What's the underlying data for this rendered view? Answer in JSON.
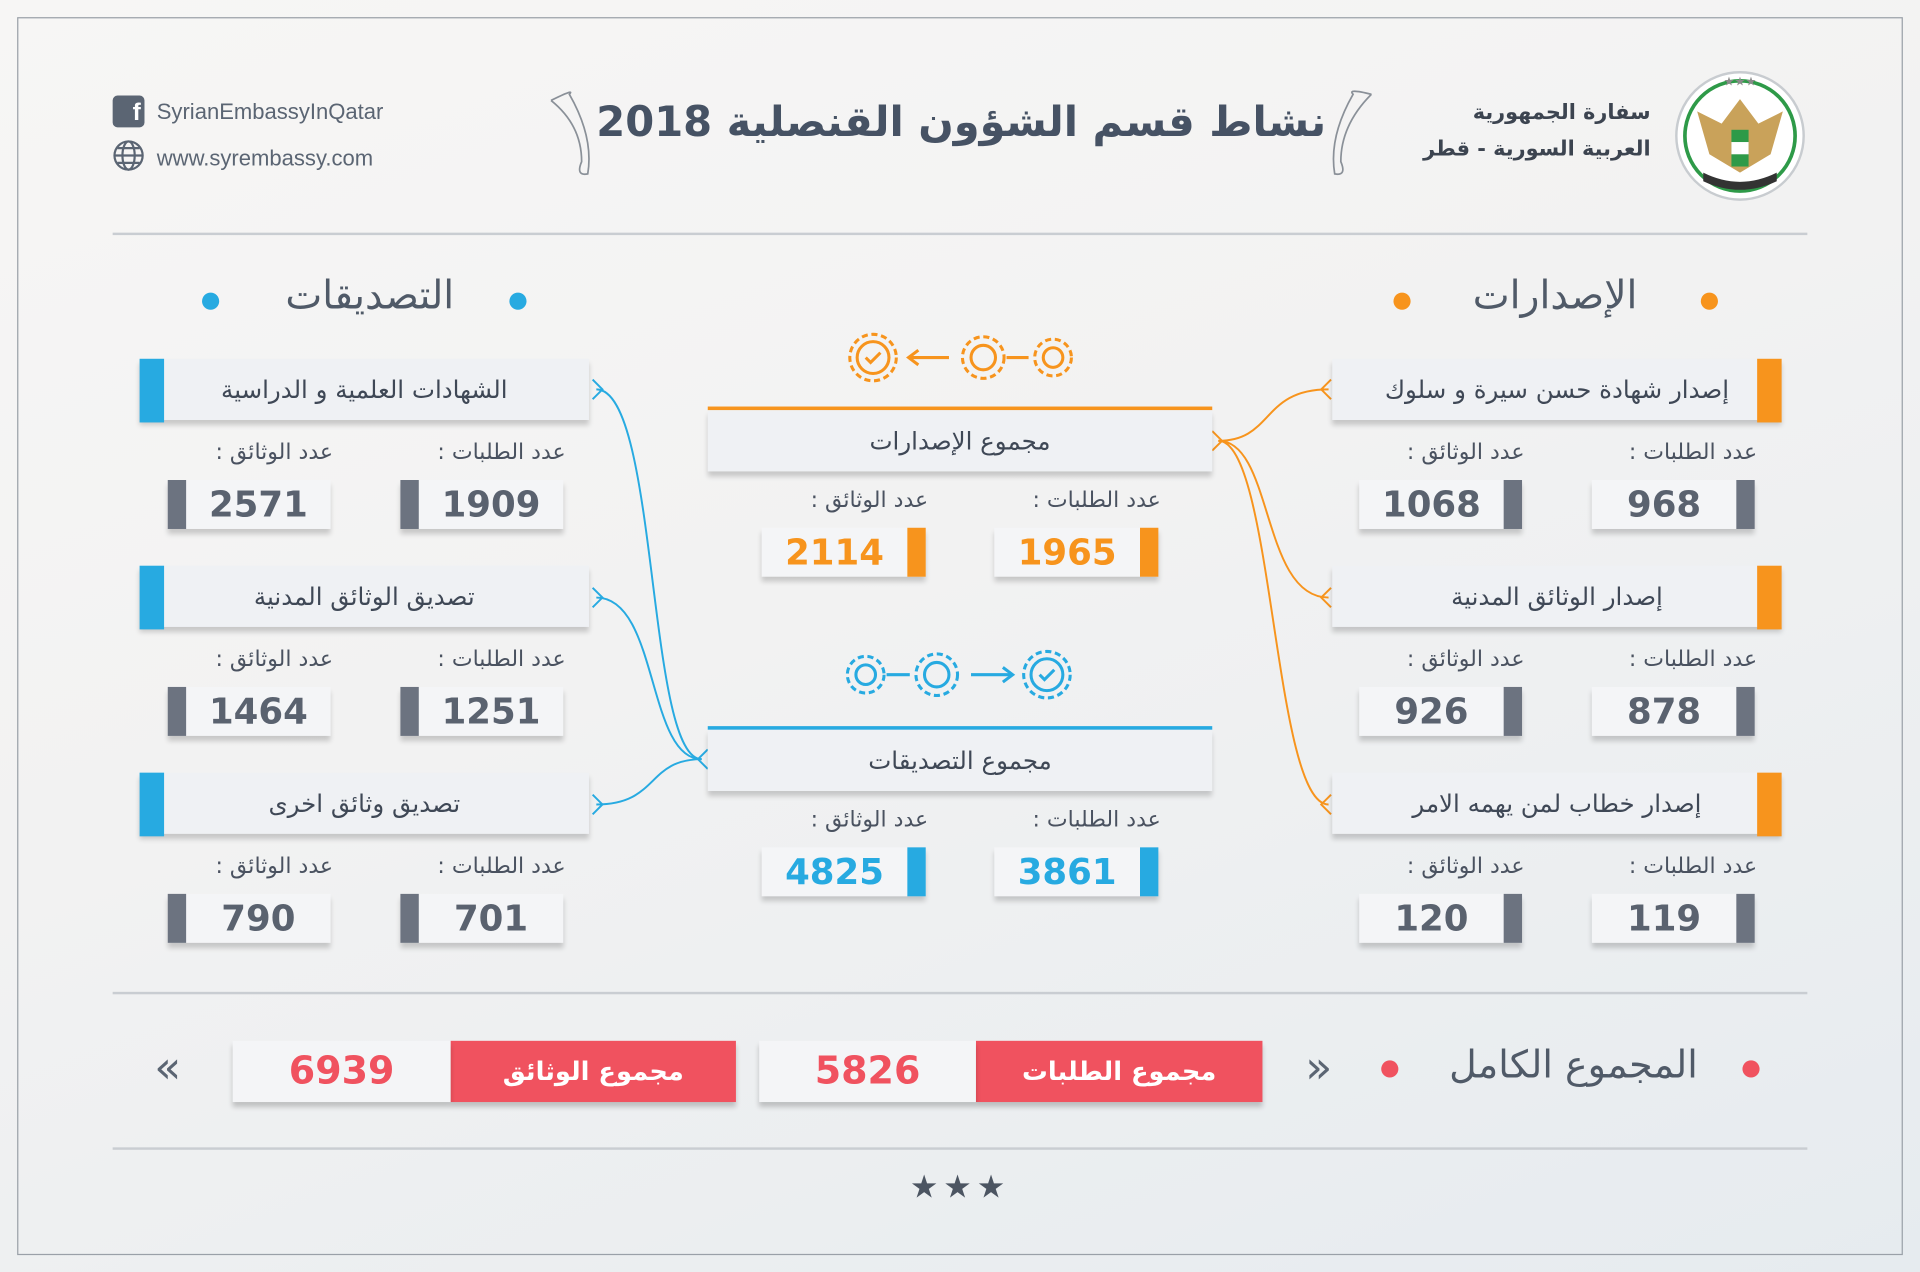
{
  "header": {
    "title": "نشاط قسم الشؤون القنصلية 2018",
    "facebook": "SyrianEmbassyInQatar",
    "website": "www.syrembassy.com",
    "embassy_line1": "سفارة الجمهورية",
    "embassy_line2": "العربية السورية - قطر",
    "logo_text": "سفارة الجمهورية العربية السورية"
  },
  "colors": {
    "orange": "#f7941d",
    "blue": "#27aae1",
    "red": "#f0525f",
    "gray": "#6c7380"
  },
  "issuances": {
    "title": "الإصدارات",
    "cards": [
      {
        "label": "إصدار شهادة حسن سيرة و سلوك",
        "requests_label": "عدد الطلبات :",
        "documents_label": "عدد الوثائق :",
        "requests": "968",
        "documents": "1068"
      },
      {
        "label": "إصدار الوثائق المدنية",
        "requests_label": "عدد الطلبات :",
        "documents_label": "عدد الوثائق :",
        "requests": "878",
        "documents": "926"
      },
      {
        "label": "إصدار خطاب لمن يهمه الامر",
        "requests_label": "عدد الطلبات :",
        "documents_label": "عدد الوثائق :",
        "requests": "119",
        "documents": "120"
      }
    ],
    "total": {
      "label": "مجموع الإصدارات",
      "requests_label": "عدد الطلبات :",
      "documents_label": "عدد الوثائق :",
      "requests": "1965",
      "documents": "2114"
    }
  },
  "attestations": {
    "title": "التصديقات",
    "cards": [
      {
        "label": "الشهادات العلمية و الدراسية",
        "requests_label": "عدد الطلبات :",
        "documents_label": "عدد الوثائق :",
        "requests": "1909",
        "documents": "2571"
      },
      {
        "label": "تصديق الوثائق المدنية",
        "requests_label": "عدد الطلبات :",
        "documents_label": "عدد الوثائق :",
        "requests": "1251",
        "documents": "1464"
      },
      {
        "label": "تصديق وثائق اخرى",
        "requests_label": "عدد الطلبات :",
        "documents_label": "عدد الوثائق :",
        "requests": "701",
        "documents": "790"
      }
    ],
    "total": {
      "label": "مجموع التصديقات",
      "requests_label": "عدد الطلبات :",
      "documents_label": "عدد الوثائق :",
      "requests": "3861",
      "documents": "4825"
    }
  },
  "grand_total": {
    "title": "المجموع الكامل",
    "requests_label": "مجموع الطلبات",
    "requests": "5826",
    "documents_label": "مجموع الوثائق",
    "documents": "6939",
    "chevron_right": "»",
    "chevron_left": "«"
  },
  "footer": {
    "stars": "★★★"
  }
}
